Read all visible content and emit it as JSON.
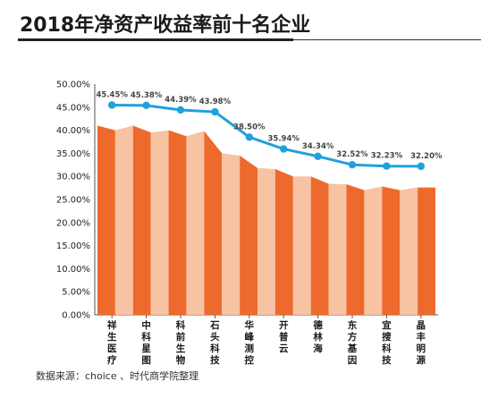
{
  "title": "2018年净资产收益率前十名企业",
  "source": "数据来源：choice 、时代商学院整理",
  "colors": {
    "bar_dark": "#ed6a2c",
    "bar_light": "#f7c3a3",
    "line": "#1fa1dc",
    "axis": "#555555"
  },
  "chart_data": {
    "type": "bar+line",
    "categories": [
      "祥生医疗",
      "中科星图",
      "科前生物",
      "石头科技",
      "华峰测控",
      "开普云",
      "德林海",
      "东方基因",
      "宜搜科技",
      "晶丰明源"
    ],
    "values": [
      45.45,
      45.38,
      44.39,
      43.98,
      38.5,
      35.94,
      34.34,
      32.52,
      32.23,
      32.2
    ],
    "value_labels": [
      "45.45%",
      "45.38%",
      "44.39%",
      "43.98%",
      "38.50%",
      "35.94%",
      "34.34%",
      "32.52%",
      "32.23%",
      "32.20%"
    ],
    "bar_profile": [
      41.0,
      40.0,
      41.0,
      39.5,
      40.0,
      38.7,
      39.8,
      35.0,
      34.5,
      31.8,
      31.6,
      30.0,
      30.0,
      28.4,
      28.3,
      27.0,
      27.8,
      27.0,
      27.6
    ],
    "yticks": [
      "0.00%",
      "5.00%",
      "10.00%",
      "15.00%",
      "20.00%",
      "25.00%",
      "30.00%",
      "35.00%",
      "40.00%",
      "45.00%",
      "50.00%"
    ],
    "ylim": [
      0,
      50
    ]
  }
}
